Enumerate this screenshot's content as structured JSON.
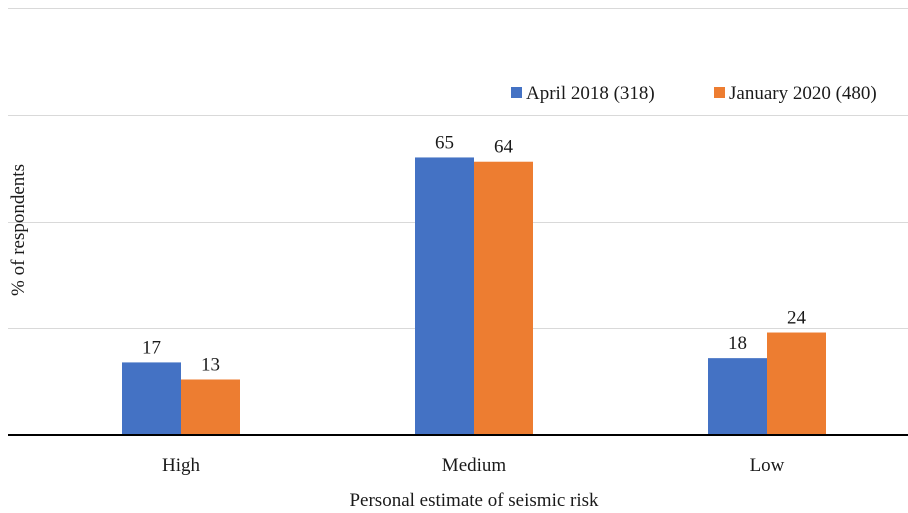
{
  "chart_data": {
    "type": "bar",
    "title": "",
    "xlabel": "Personal estimate of seismic risk",
    "ylabel": "% of respondents",
    "categories": [
      "High",
      "Medium",
      "Low"
    ],
    "series": [
      {
        "name": "April 2018 (318)",
        "values": [
          17,
          65,
          18
        ]
      },
      {
        "name": "January 2020 (480)",
        "values": [
          13,
          64,
          24
        ]
      }
    ],
    "ylim": [
      0,
      100
    ],
    "gridlines": [
      25,
      50,
      75,
      100
    ],
    "grid": true,
    "legend_position": "top-right",
    "data_labels": true
  },
  "colors": {
    "series": [
      "#4472C4",
      "#ED7D31"
    ],
    "grid": "#d9d9d9",
    "axis": "#000000"
  }
}
